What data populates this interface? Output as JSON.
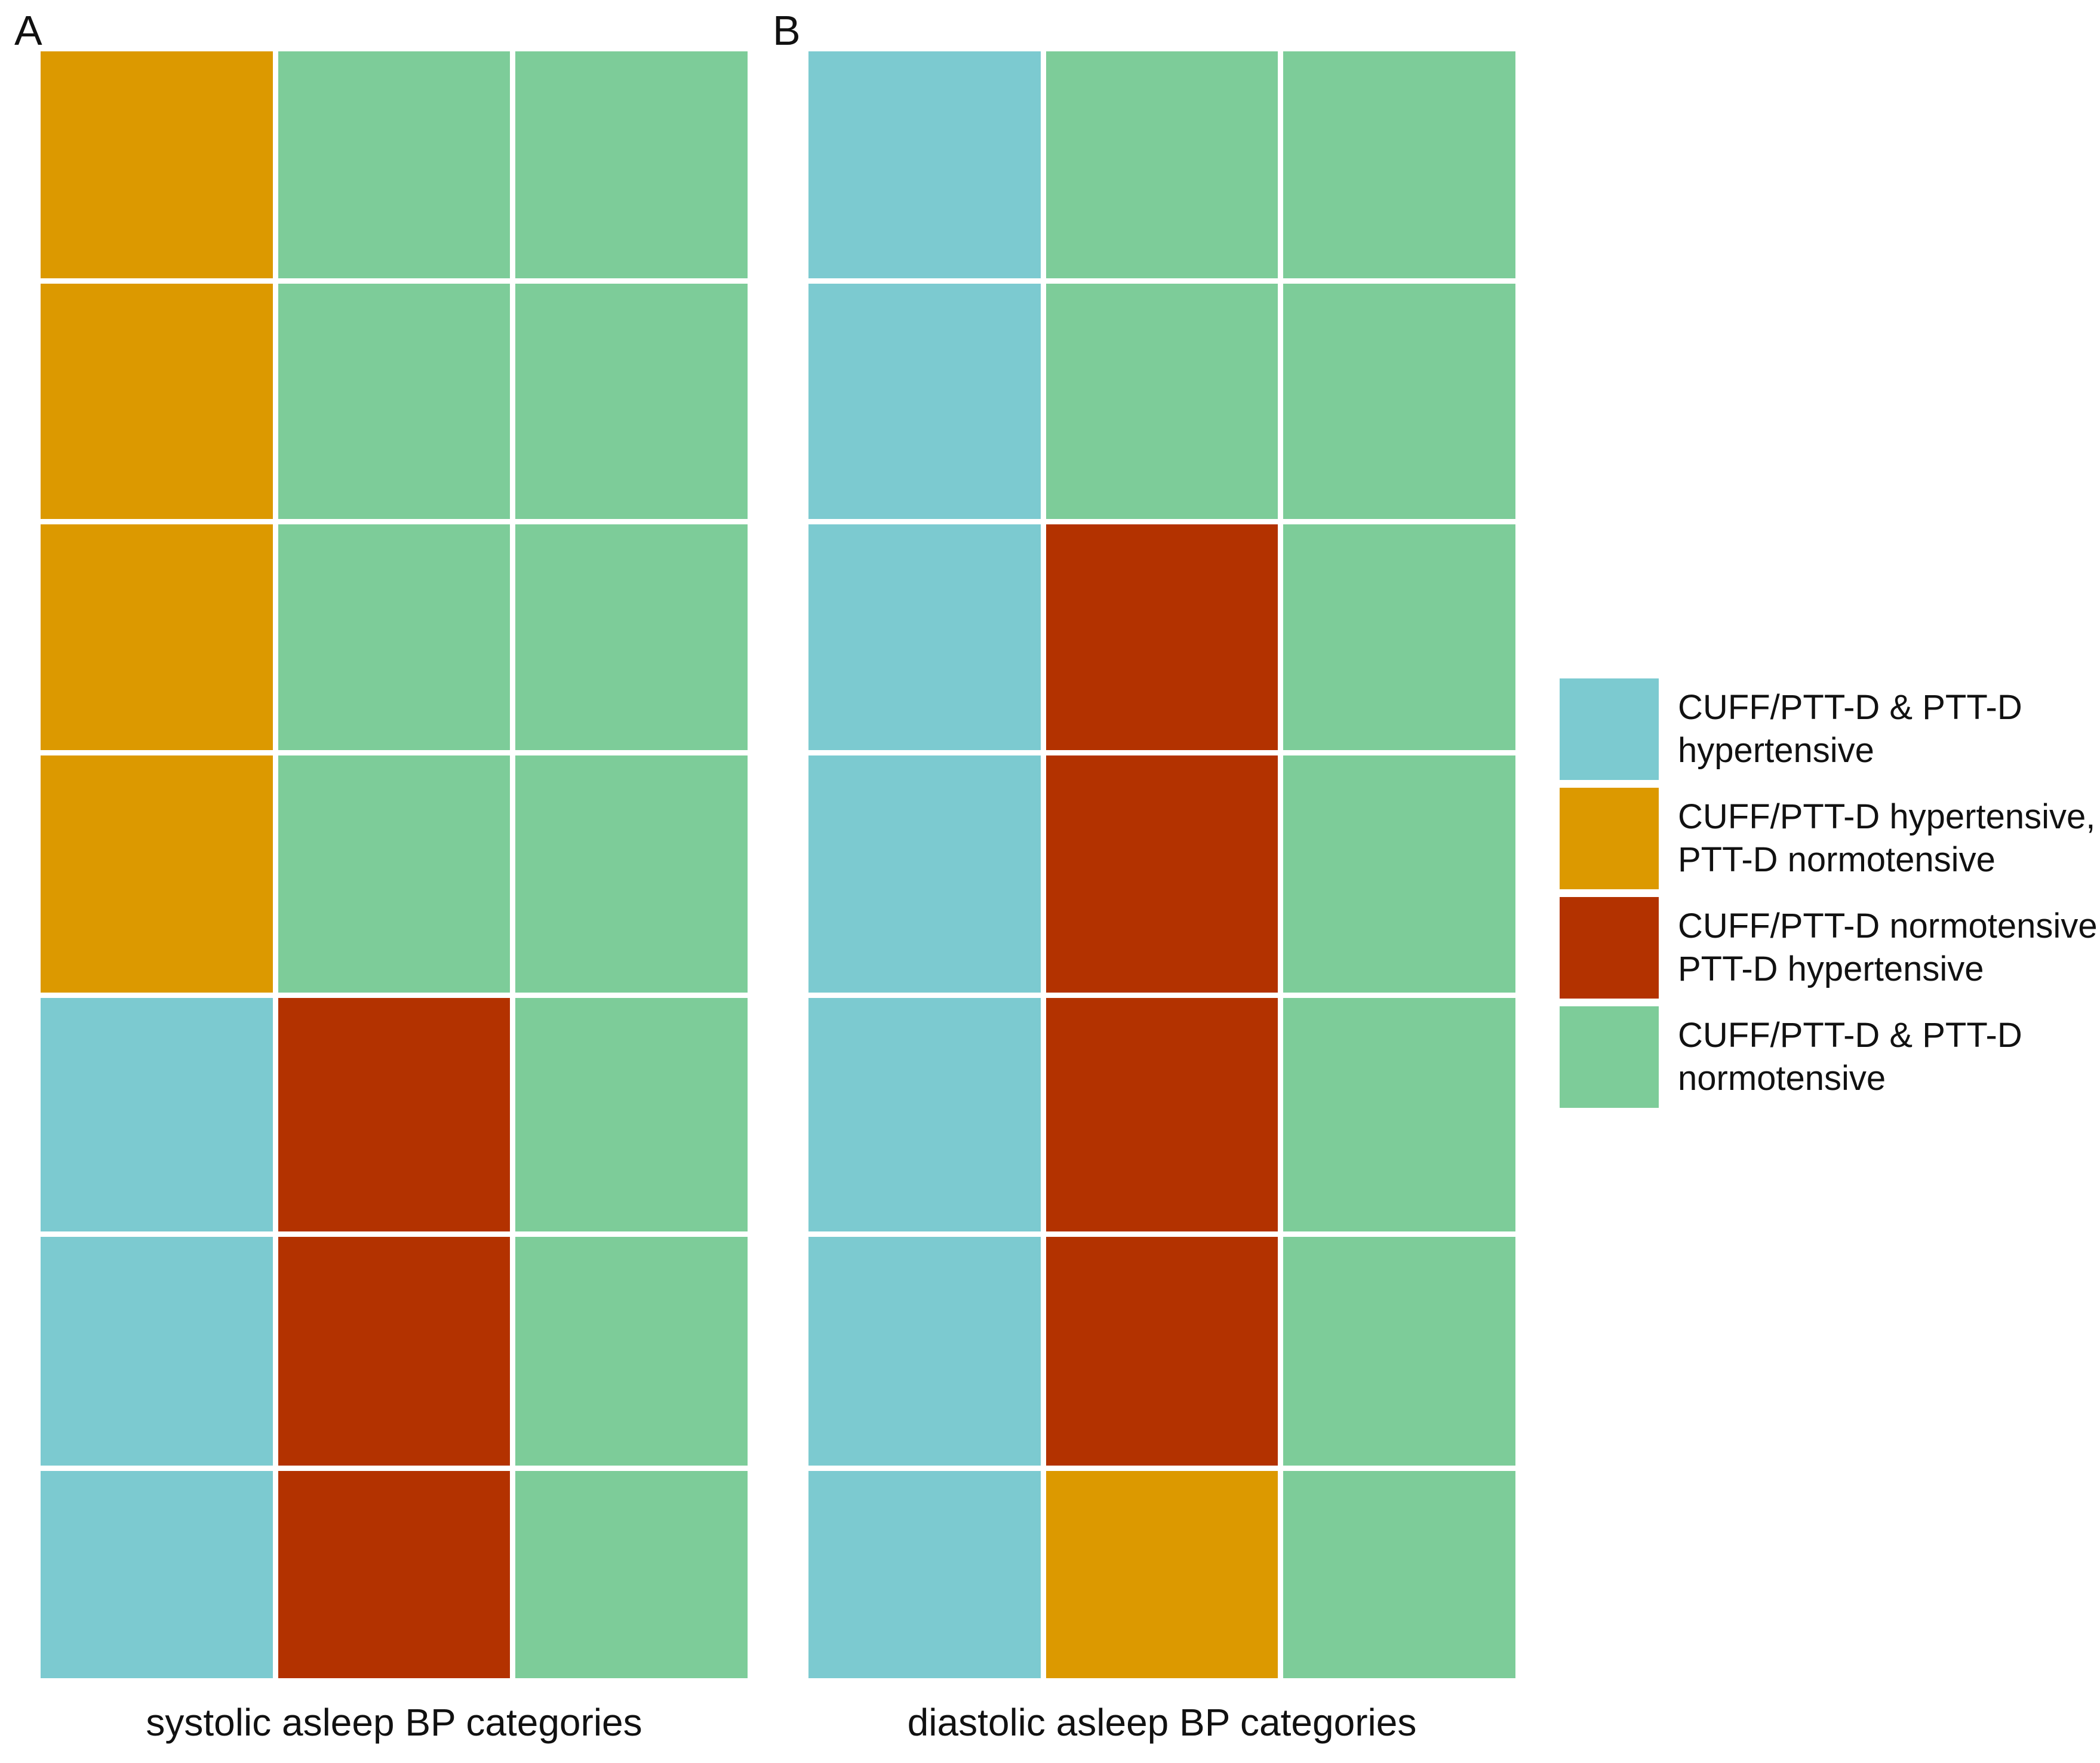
{
  "figure": {
    "panel_a_label": "A",
    "panel_b_label": "B",
    "panel_a_axis_label": "systolic asleep BP categories",
    "panel_b_axis_label": "diastolic asleep BP categories"
  },
  "palette": {
    "teal": "#7CCAD0",
    "orange": "#DC9900",
    "red": "#B33200",
    "green": "#7DCC99"
  },
  "legend": {
    "position": "right",
    "items": [
      {
        "color": "teal",
        "line1": "CUFF/PTT-D & PTT-D",
        "line2": "hypertensive"
      },
      {
        "color": "orange",
        "line1": "CUFF/PTT-D hypertensive,",
        "line2": "PTT-D normotensive"
      },
      {
        "color": "red",
        "line1": "CUFF/PTT-D normotensive,",
        "line2": "PTT-D hypertensive"
      },
      {
        "color": "green",
        "line1": "CUFF/PTT-D & PTT-D",
        "line2": "normotensive"
      }
    ]
  },
  "chart_data": [
    {
      "type": "heatmap",
      "panel": "A",
      "xlabel": "systolic asleep BP categories",
      "rows": 7,
      "columns": 3,
      "grid": "on-white-gutters",
      "cells": [
        [
          "orange",
          "green",
          "green"
        ],
        [
          "orange",
          "green",
          "green"
        ],
        [
          "orange",
          "green",
          "green"
        ],
        [
          "orange",
          "green",
          "green"
        ],
        [
          "teal",
          "red",
          "green"
        ],
        [
          "teal",
          "red",
          "green"
        ],
        [
          "teal",
          "red",
          "green"
        ]
      ]
    },
    {
      "type": "heatmap",
      "panel": "B",
      "xlabel": "diastolic asleep BP categories",
      "rows": 7,
      "columns": 3,
      "grid": "on-white-gutters",
      "cells": [
        [
          "teal",
          "green",
          "green"
        ],
        [
          "teal",
          "green",
          "green"
        ],
        [
          "teal",
          "red",
          "green"
        ],
        [
          "teal",
          "red",
          "green"
        ],
        [
          "teal",
          "red",
          "green"
        ],
        [
          "teal",
          "red",
          "green"
        ],
        [
          "teal",
          "orange",
          "green"
        ]
      ]
    }
  ],
  "category_names_by_color": {
    "teal": "CUFF/PTT-D & PTT-D hypertensive",
    "orange": "CUFF/PTT-D hypertensive, PTT-D normotensive",
    "red": "CUFF/PTT-D normotensive, PTT-D hypertensive",
    "green": "CUFF/PTT-D & PTT-D normotensive"
  }
}
